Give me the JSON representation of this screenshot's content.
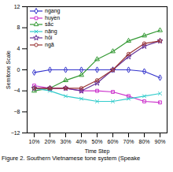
{
  "chart_data": {
    "type": "line",
    "caption": "Figure 2. Southern Vietnamese tone system (Speake",
    "x_label": "Time Step",
    "y_label": "Semitone Scale",
    "categories": [
      "10%",
      "20%",
      "30%",
      "40%",
      "50%",
      "60%",
      "70%",
      "80%",
      "90%"
    ],
    "ylim": [
      -12,
      12
    ],
    "yticks": [
      -12,
      -8,
      -4,
      0,
      4,
      8,
      12
    ],
    "grid": false,
    "legend": "top-left",
    "series": [
      {
        "name": "ngang",
        "color": "#3333cc",
        "marker": "diamond",
        "values": [
          -0.5,
          0,
          0,
          0,
          0,
          0,
          0,
          -0.3,
          -1.5
        ]
      },
      {
        "name": "huyền",
        "color": "#cc33cc",
        "marker": "square",
        "values": [
          -3,
          -3.5,
          -3.5,
          -4,
          -4,
          -4.2,
          -5,
          -6,
          -6.2
        ]
      },
      {
        "name": "sắc",
        "color": "#339933",
        "marker": "triangle",
        "values": [
          -4,
          -3.5,
          -2,
          -1,
          2,
          3.5,
          5.5,
          6.5,
          7.5
        ]
      },
      {
        "name": "nặng",
        "color": "#33cccc",
        "marker": "times",
        "values": [
          -3.5,
          -4,
          -5,
          -5.5,
          -6,
          -6,
          -5.5,
          -5,
          -4.5
        ]
      },
      {
        "name": "hỏi",
        "color": "#663399",
        "marker": "star",
        "values": [
          -3.5,
          -3.5,
          -3.5,
          -4,
          -2.5,
          0,
          2.5,
          4.5,
          5.5
        ]
      },
      {
        "name": "ngã",
        "color": "#993333",
        "marker": "circle",
        "values": [
          -3.5,
          -3.5,
          -3.5,
          -3.5,
          -2,
          0,
          3,
          5,
          5.5
        ]
      }
    ]
  }
}
